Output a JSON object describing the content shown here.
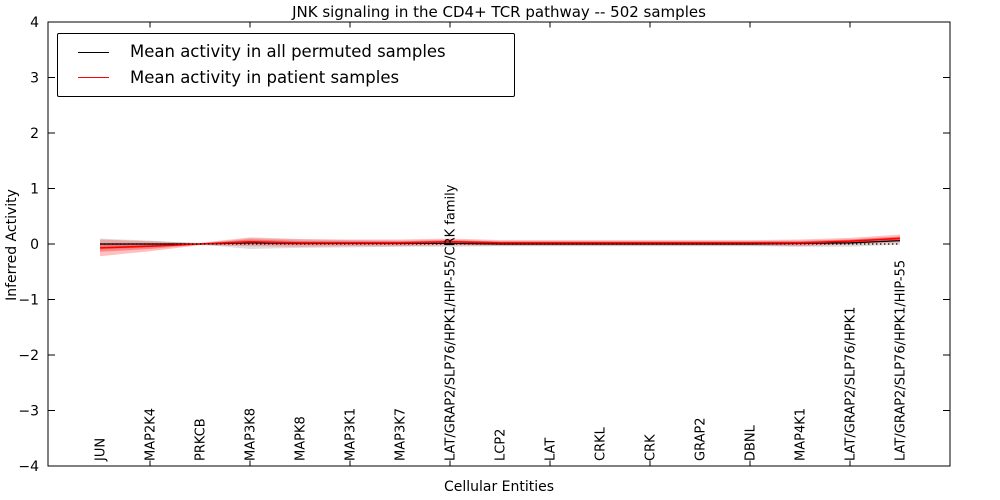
{
  "figure": {
    "title": "JNK signaling in the CD4+ TCR pathway -- 502 samples",
    "xlabel": "Cellular Entities",
    "ylabel": "Inferred Activity"
  },
  "chart_data": {
    "type": "line",
    "title": "JNK signaling in the CD4+ TCR pathway -- 502 samples",
    "xlabel": "Cellular Entities",
    "ylabel": "Inferred Activity",
    "ylim": [
      -4,
      4
    ],
    "grid": false,
    "legend_position": "upper left",
    "categories": [
      "JUN",
      "MAP2K4",
      "PRKCB",
      "MAP3K8",
      "MAPK8",
      "MAP3K1",
      "MAP3K7",
      "LAT/GRAP2/SLP76/HPK1/HIP-55/CRK family",
      "LCP2",
      "LAT",
      "CRKL",
      "CRK",
      "GRAP2",
      "DBNL",
      "MAP4K1",
      "LAT/GRAP2/SLP76/HPK1",
      "LAT/GRAP2/SLP76/HPK1/HIP-55"
    ],
    "y_tick_values": [
      4,
      3,
      2,
      1,
      0,
      -1,
      -2,
      -3,
      -4
    ],
    "y_tick_labels": [
      "4",
      "3",
      "2",
      "1",
      "0",
      "−1",
      "−2",
      "−3",
      "−4"
    ],
    "zero_line": {
      "y": 0,
      "style": "dotted",
      "color": "#000000"
    },
    "series": [
      {
        "name": "Mean activity in all permuted samples",
        "color": "#000000",
        "band_color": "rgba(0,0,0,0.13)",
        "values": [
          0.0,
          0.0,
          0.0,
          0.02,
          0.01,
          0.01,
          0.01,
          0.01,
          0.0,
          0.0,
          0.0,
          0.0,
          0.0,
          0.0,
          0.01,
          0.02,
          0.06
        ],
        "band_upper": [
          0.1,
          0.06,
          0.01,
          0.1,
          0.08,
          0.07,
          0.06,
          0.07,
          0.05,
          0.05,
          0.05,
          0.05,
          0.05,
          0.05,
          0.06,
          0.08,
          0.13
        ],
        "band_lower": [
          -0.1,
          -0.06,
          -0.01,
          -0.09,
          -0.07,
          -0.06,
          -0.05,
          -0.05,
          -0.04,
          -0.04,
          -0.04,
          -0.04,
          -0.04,
          -0.04,
          -0.05,
          -0.05,
          -0.01
        ]
      },
      {
        "name": "Mean activity in patient samples",
        "color": "#ff0000",
        "band_color": "rgba(255,30,30,0.28)",
        "inner_band_color": "rgba(255,0,0,0.30)",
        "values": [
          -0.07,
          -0.04,
          0.0,
          0.04,
          0.02,
          0.02,
          0.02,
          0.04,
          0.02,
          0.02,
          0.02,
          0.02,
          0.02,
          0.02,
          0.02,
          0.05,
          0.1
        ],
        "band_upper": [
          0.08,
          0.05,
          0.02,
          0.12,
          0.09,
          0.08,
          0.08,
          0.1,
          0.07,
          0.07,
          0.07,
          0.07,
          0.07,
          0.07,
          0.08,
          0.11,
          0.17
        ],
        "band_lower": [
          -0.22,
          -0.13,
          -0.02,
          -0.04,
          -0.05,
          -0.04,
          -0.04,
          -0.02,
          -0.03,
          -0.03,
          -0.03,
          -0.03,
          -0.03,
          -0.03,
          -0.04,
          -0.01,
          0.03
        ],
        "inner_band_upper": [
          0.0,
          0.01,
          0.01,
          0.08,
          0.055,
          0.05,
          0.05,
          0.07,
          0.045,
          0.045,
          0.045,
          0.045,
          0.045,
          0.045,
          0.05,
          0.08,
          0.135
        ],
        "inner_band_lower": [
          -0.14,
          -0.09,
          -0.01,
          0.0,
          -0.015,
          -0.01,
          -0.01,
          0.01,
          -0.005,
          -0.005,
          -0.005,
          -0.005,
          -0.005,
          -0.005,
          -0.01,
          0.02,
          0.065
        ]
      }
    ]
  }
}
